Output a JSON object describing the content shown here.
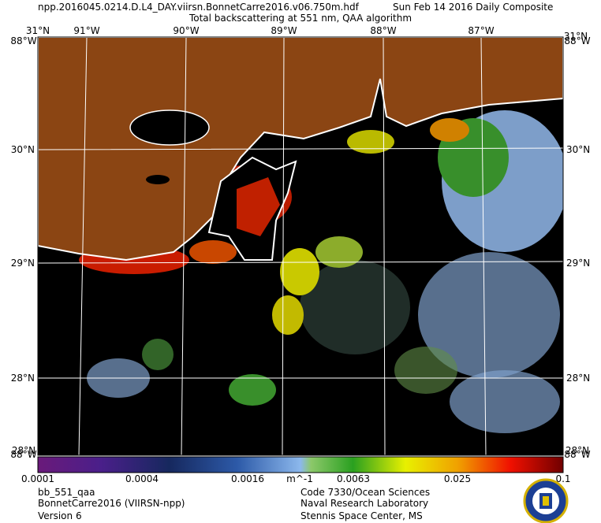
{
  "header": {
    "file": "npp.2016045.0214.D.L4_DAY.viirsn.BonnetCarre2016.v06.750m.hdf",
    "date": "Sun Feb 14 2016 Daily Composite",
    "title": "Total backscattering at 551 nm, QAA algorithm"
  },
  "map": {
    "top_labels": [
      "31°N",
      "91°W",
      "90°W",
      "89°W",
      "88°W",
      "87°W",
      "31°N"
    ],
    "corner_labels": [
      "88°W",
      "88°W",
      "88°W",
      "88°W"
    ],
    "left_labels": [
      "30°N",
      "29°N",
      "28°N"
    ],
    "right_labels": [
      "30°N",
      "29°N",
      "28°N"
    ],
    "bottom_labels": [
      "28°N",
      "28°N"
    ]
  },
  "colorbar": {
    "labels": [
      "0.0001",
      "0.0004",
      "0.0016",
      "0.0063",
      "0.025",
      "0.1"
    ],
    "unit": "m^-1"
  },
  "footer": {
    "left": [
      "bb_551_qaa",
      "BonnetCarre2016 (VIIRSN-npp)",
      "Version 6"
    ],
    "right": [
      "Code 7330/Ocean Sciences",
      "Naval Research Laboratory",
      "Stennis Space Center, MS"
    ]
  }
}
